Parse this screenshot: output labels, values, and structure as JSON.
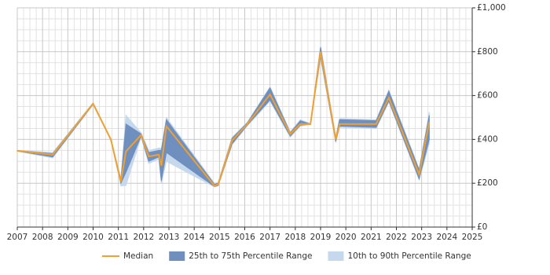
{
  "chart_data": {
    "type": "line",
    "x": [
      2007.0,
      2008.4,
      2010.0,
      2010.7,
      2011.1,
      2011.3,
      2011.9,
      2012.2,
      2012.6,
      2012.7,
      2012.9,
      2014.8,
      2014.95,
      2015.5,
      2016.1,
      2017.0,
      2017.8,
      2018.2,
      2018.6,
      2019.0,
      2019.6,
      2019.75,
      2021.2,
      2021.7,
      2022.9,
      2023.3
    ],
    "series": [
      {
        "name": "Median",
        "color": "#f0a030",
        "values": [
          348,
          330,
          563,
          400,
          207,
          345,
          420,
          322,
          330,
          280,
          460,
          188,
          195,
          395,
          470,
          605,
          425,
          470,
          470,
          800,
          400,
          470,
          470,
          590,
          240,
          480
        ]
      }
    ],
    "bands": [
      {
        "name": "10th to 90th Percentile Range",
        "color": "#c6d9ec",
        "low": [
          346,
          315,
          558,
          398,
          188,
          190,
          410,
          290,
          310,
          200,
          300,
          183,
          188,
          375,
          462,
          575,
          410,
          460,
          468,
          770,
          385,
          455,
          450,
          570,
          215,
          380
        ],
        "high": [
          350,
          340,
          568,
          402,
          222,
          510,
          430,
          350,
          360,
          360,
          500,
          200,
          205,
          410,
          478,
          640,
          435,
          490,
          472,
          830,
          410,
          495,
          490,
          625,
          265,
          525
        ]
      },
      {
        "name": "25th to 75th Percentile Range",
        "color": "#6f8fbf",
        "low": [
          347,
          320,
          560,
          400,
          200,
          250,
          415,
          300,
          320,
          210,
          340,
          185,
          190,
          380,
          465,
          580,
          415,
          465,
          470,
          780,
          390,
          460,
          455,
          575,
          220,
          400
        ],
        "high": [
          349,
          335,
          565,
          400,
          215,
          470,
          425,
          340,
          350,
          350,
          490,
          195,
          200,
          405,
          475,
          635,
          430,
          485,
          470,
          820,
          405,
          490,
          485,
          620,
          260,
          510
        ]
      }
    ],
    "xlim": [
      2007,
      2025
    ],
    "xticks": [
      2007,
      2008,
      2009,
      2010,
      2011,
      2012,
      2013,
      2014,
      2015,
      2016,
      2017,
      2018,
      2019,
      2020,
      2021,
      2022,
      2023,
      2024,
      2025
    ],
    "ylim": [
      0,
      1000
    ],
    "yticks": [
      {
        "value": 0,
        "label": "£0"
      },
      {
        "value": 200,
        "label": "£200"
      },
      {
        "value": 400,
        "label": "£400"
      },
      {
        "value": 600,
        "label": "£600"
      },
      {
        "value": 800,
        "label": "£800"
      },
      {
        "value": 1000,
        "label": "£1,000"
      }
    ],
    "grid": true,
    "legend": "bottom"
  }
}
